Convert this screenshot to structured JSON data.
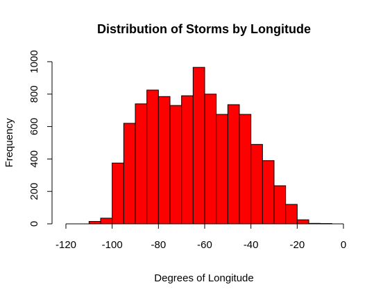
{
  "chart_data": {
    "type": "bar",
    "title": "Distribution of Storms by Longitude",
    "xlabel": "Degrees of Longitude",
    "ylabel": "Frequency",
    "bar_color": "#ff0000",
    "bar_edge_color": "#000000",
    "xlim": [
      -120,
      0
    ],
    "ylim": [
      0,
      1000
    ],
    "x_ticks": [
      -120,
      -100,
      -80,
      -60,
      -40,
      -20,
      0
    ],
    "y_ticks": [
      0,
      200,
      400,
      600,
      800,
      1000
    ],
    "bins": [
      {
        "x0": -110,
        "x1": -105,
        "value": 15
      },
      {
        "x0": -105,
        "x1": -100,
        "value": 35
      },
      {
        "x0": -100,
        "x1": -95,
        "value": 375
      },
      {
        "x0": -95,
        "x1": -90,
        "value": 620
      },
      {
        "x0": -90,
        "x1": -85,
        "value": 740
      },
      {
        "x0": -85,
        "x1": -80,
        "value": 825
      },
      {
        "x0": -80,
        "x1": -75,
        "value": 785
      },
      {
        "x0": -75,
        "x1": -70,
        "value": 730
      },
      {
        "x0": -70,
        "x1": -65,
        "value": 790
      },
      {
        "x0": -65,
        "x1": -60,
        "value": 965
      },
      {
        "x0": -60,
        "x1": -55,
        "value": 800
      },
      {
        "x0": -55,
        "x1": -50,
        "value": 675
      },
      {
        "x0": -50,
        "x1": -45,
        "value": 735
      },
      {
        "x0": -45,
        "x1": -40,
        "value": 675
      },
      {
        "x0": -40,
        "x1": -35,
        "value": 490
      },
      {
        "x0": -35,
        "x1": -30,
        "value": 390
      },
      {
        "x0": -30,
        "x1": -25,
        "value": 235
      },
      {
        "x0": -25,
        "x1": -20,
        "value": 120
      },
      {
        "x0": -20,
        "x1": -15,
        "value": 25
      },
      {
        "x0": -15,
        "x1": -10,
        "value": 3
      },
      {
        "x0": -10,
        "x1": -5,
        "value": 2
      }
    ]
  }
}
